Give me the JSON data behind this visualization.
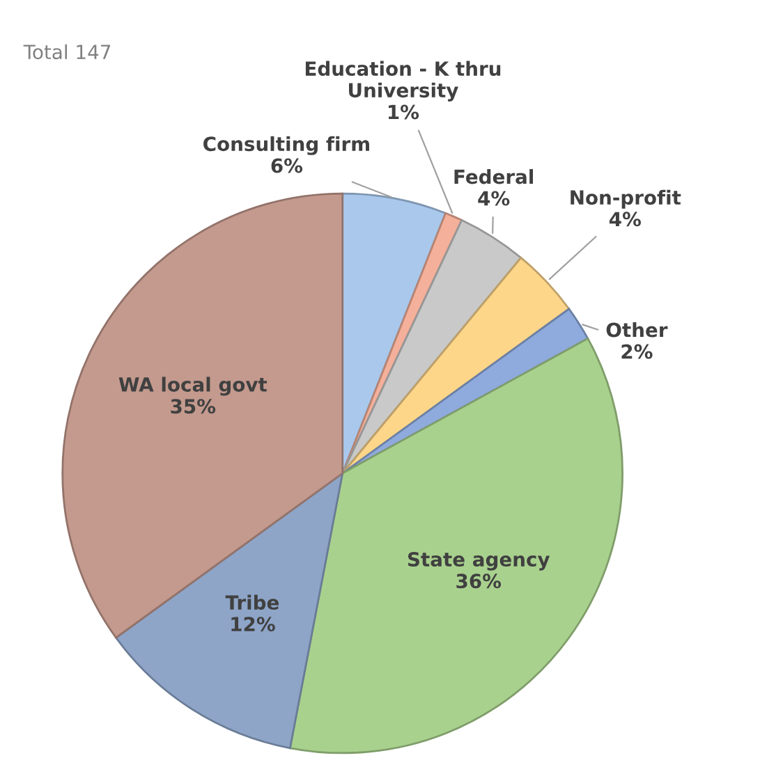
{
  "chart_data": {
    "type": "pie",
    "categories": [
      "Consulting firm",
      "Education - K thru\nUniversity",
      "Federal",
      "Non-profit",
      "Other",
      "State agency",
      "Tribe",
      "WA local govt"
    ],
    "values": [
      6,
      1,
      4,
      4,
      2,
      36,
      12,
      35
    ],
    "value_labels": [
      "6%",
      "1%",
      "4%",
      "4%",
      "2%",
      "36%",
      "12%",
      "35%"
    ],
    "colors": [
      "#a9c8ec",
      "#f4b09a",
      "#c9c9c9",
      "#fdd68a",
      "#8faadc",
      "#a9d18e",
      "#8ea5c8",
      "#c49a8e"
    ],
    "annotations": [
      "Total 147"
    ],
    "legend": false
  }
}
